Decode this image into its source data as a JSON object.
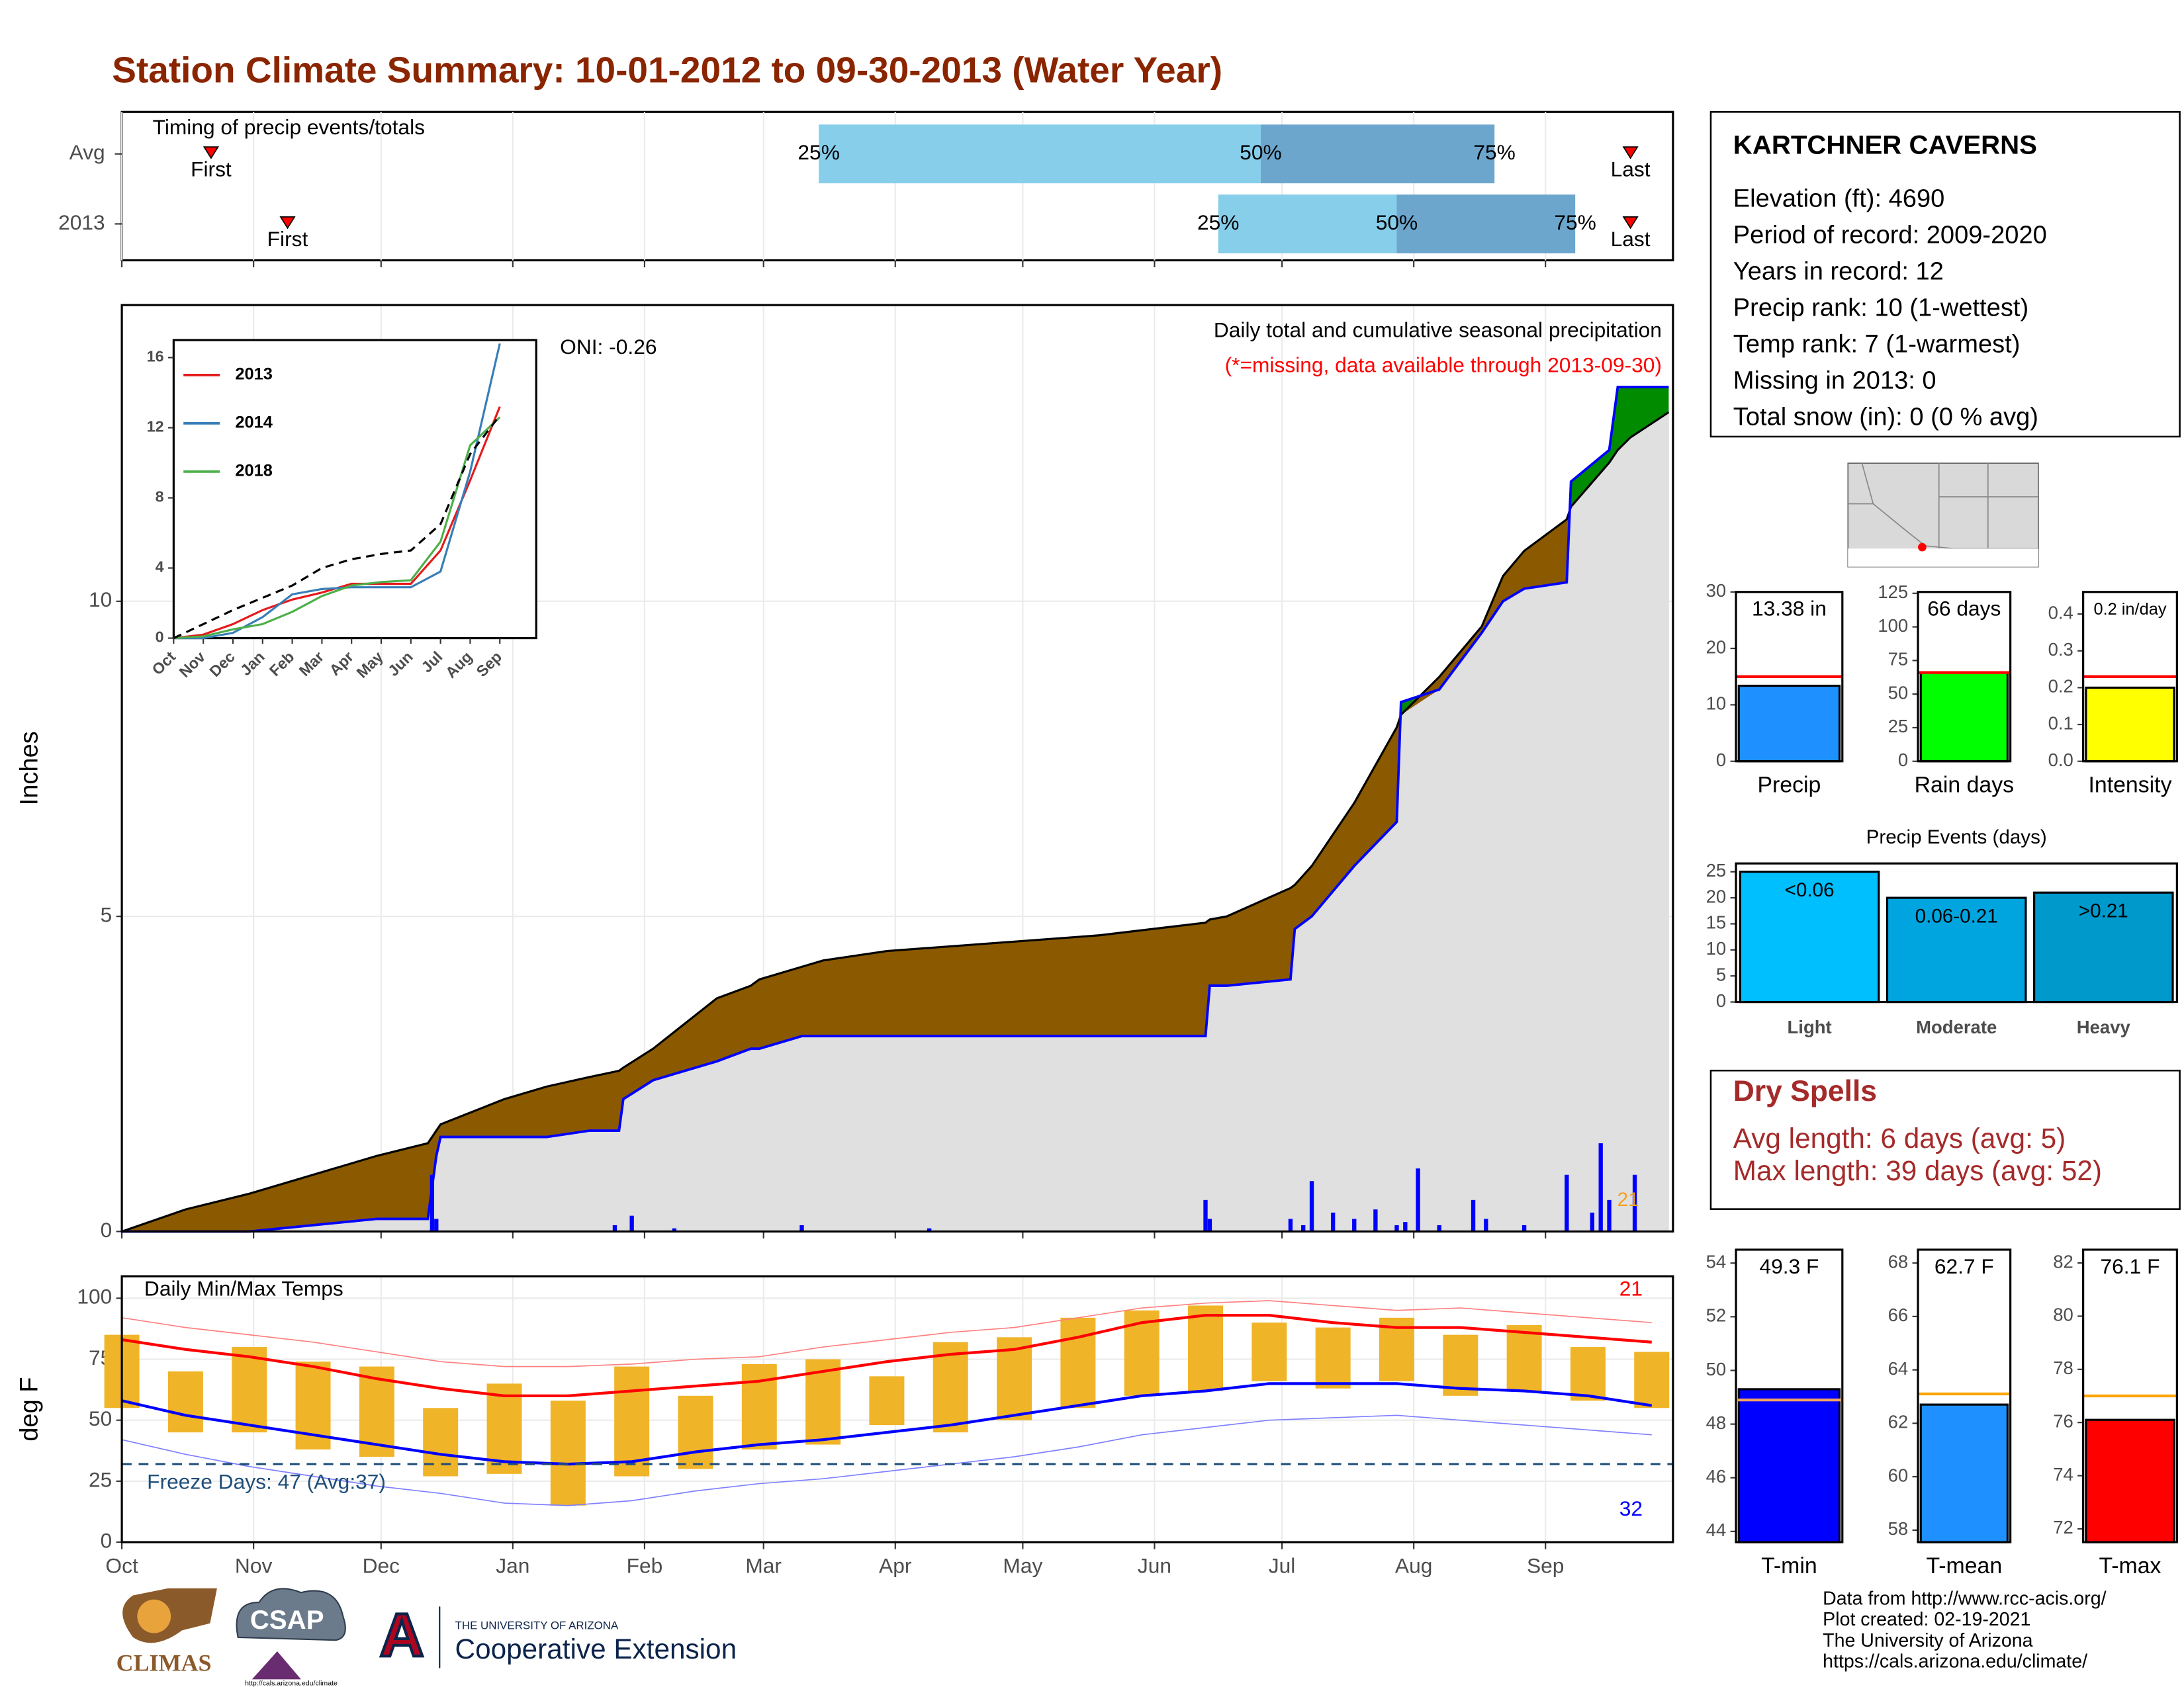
{
  "title": "Station Climate Summary: 10-01-2012 to 09-30-2013 (Water Year)",
  "chart_data": [
    {
      "type": "timing",
      "title": "Timing of precip events/totals",
      "categories": [
        "Avg",
        "2013"
      ],
      "xlim": [
        0,
        365
      ],
      "first": [
        21,
        39
      ],
      "first_label": "First",
      "last": [
        355,
        355
      ],
      "last_label": "Last",
      "quartiles": [
        [
          164,
          268,
          323
        ],
        [
          258,
          300,
          342
        ]
      ],
      "quartile_labels": [
        "25%",
        "50%",
        "75%"
      ],
      "colors": [
        "#87ceeb",
        "#6ca6cd"
      ]
    },
    {
      "type": "area",
      "xlim": [
        0,
        365
      ],
      "ylim": [
        0,
        14.7
      ],
      "yticks": [
        0,
        5,
        10
      ],
      "ylabel": "Inches",
      "x": [
        0,
        15,
        30,
        60,
        72,
        74,
        75,
        90,
        95,
        100,
        110,
        117,
        118,
        125,
        140,
        148,
        150,
        160,
        165,
        170,
        180,
        190,
        200,
        230,
        255,
        256,
        260,
        275,
        276,
        280,
        290,
        300,
        301,
        310,
        320,
        325,
        330,
        340,
        341,
        350,
        352,
        355,
        364
      ],
      "series": [
        {
          "color": "#0000ff",
          "values": [
            0,
            0,
            0,
            0.2,
            0.2,
            1.2,
            1.5,
            1.5,
            1.5,
            1.5,
            1.6,
            1.6,
            2.1,
            2.4,
            2.7,
            2.9,
            2.9,
            3.1,
            3.1,
            3.1,
            3.1,
            3.1,
            3.1,
            3.1,
            3.1,
            3.9,
            3.9,
            4.0,
            4.8,
            5.0,
            5.8,
            6.5,
            8.4,
            8.6,
            9.5,
            10.0,
            10.2,
            10.3,
            11.9,
            12.4,
            13.4,
            13.4,
            13.4
          ]
        },
        {
          "color": "#000000",
          "values": [
            0,
            0.35,
            0.6,
            1.2,
            1.4,
            1.6,
            1.7,
            2.1,
            2.2,
            2.3,
            2.45,
            2.55,
            2.6,
            2.9,
            3.7,
            3.9,
            4.0,
            4.2,
            4.3,
            4.35,
            4.45,
            4.5,
            4.55,
            4.7,
            4.9,
            4.95,
            5.0,
            5.45,
            5.5,
            5.8,
            6.8,
            8.0,
            8.2,
            8.8,
            9.6,
            10.4,
            10.8,
            11.3,
            11.5,
            12.2,
            12.4,
            12.6,
            13.0
          ]
        }
      ],
      "fill_colors": {
        "deficit": "#8b5a00",
        "surplus": "#008b00",
        "base": "#e0e0e0"
      },
      "bars": {
        "color": "#0000ff",
        "x": [
          73,
          74,
          116,
          120,
          130,
          160,
          190,
          255,
          256,
          275,
          278,
          280,
          285,
          290,
          295,
          300,
          302,
          305,
          310,
          318,
          321,
          330,
          340,
          346,
          348,
          350,
          356
        ],
        "values": [
          0.9,
          0.2,
          0.1,
          0.25,
          0.05,
          0.1,
          0.05,
          0.5,
          0.2,
          0.2,
          0.1,
          0.8,
          0.3,
          0.2,
          0.35,
          0.1,
          0.15,
          1.0,
          0.1,
          0.5,
          0.2,
          0.1,
          0.9,
          0.3,
          1.4,
          0.5,
          0.9
        ]
      },
      "oni": "ONI: -0.26",
      "subtitle": "Daily total and cumulative seasonal precipitation",
      "note": "(*=missing, data available through 2013-09-30)",
      "corner_label": "21"
    },
    {
      "type": "line",
      "categories": [
        "Oct",
        "Nov",
        "Dec",
        "Jan",
        "Feb",
        "Mar",
        "Apr",
        "May",
        "Jun",
        "Jul",
        "Aug",
        "Sep"
      ],
      "ylim": [
        0,
        17
      ],
      "yticks": [
        0,
        4,
        8,
        12,
        16
      ],
      "series": [
        {
          "name": "2013",
          "color": "#e41a1c",
          "values": [
            0,
            0.2,
            0.8,
            1.6,
            2.2,
            2.6,
            3.1,
            3.1,
            3.1,
            5.0,
            9.0,
            13.2
          ]
        },
        {
          "name": "2014",
          "color": "#377eb8",
          "values": [
            0,
            0,
            0.3,
            1.2,
            2.5,
            2.8,
            2.9,
            2.9,
            2.9,
            3.8,
            9.5,
            16.8
          ]
        },
        {
          "name": "2018",
          "color": "#4daf4a",
          "values": [
            0,
            0.1,
            0.5,
            0.8,
            1.5,
            2.4,
            3.0,
            3.2,
            3.3,
            5.5,
            11.0,
            12.6
          ]
        },
        {
          "color": "#000000",
          "dash": true,
          "values": [
            0,
            0.8,
            1.6,
            2.3,
            3.0,
            4.0,
            4.5,
            4.8,
            5.0,
            6.5,
            10.5,
            12.7
          ]
        }
      ]
    },
    {
      "type": "bar",
      "categories": [
        "Precip"
      ],
      "values": [
        13.38
      ],
      "value_labels": [
        "13.38 in"
      ],
      "reference": 15,
      "ref_color": "#ff0000",
      "color": "#1e90ff",
      "ylim": [
        0,
        30
      ],
      "yticks": [
        0,
        10,
        20,
        30
      ]
    },
    {
      "type": "bar",
      "categories": [
        "Rain days"
      ],
      "values": [
        66
      ],
      "value_labels": [
        "66 days"
      ],
      "reference": 66,
      "ref_color": "#ff0000",
      "color": "#00ff00",
      "ylim": [
        0,
        126
      ],
      "yticks": [
        0,
        25,
        50,
        75,
        100,
        125
      ]
    },
    {
      "type": "bar",
      "categories": [
        "Intensity"
      ],
      "values": [
        0.2
      ],
      "value_labels": [
        "0.2 in/day"
      ],
      "reference": 0.23,
      "ref_color": "#ff0000",
      "color": "#ffff00",
      "ylim": [
        0,
        0.46
      ],
      "yticks": [
        {
          "value": 0,
          "label": "0.0"
        },
        0.1,
        0.2,
        0.3,
        0.4
      ]
    },
    {
      "type": "bar",
      "title": "Precip Events (days)",
      "categories": [
        "Light",
        "Moderate",
        "Heavy"
      ],
      "values": [
        25,
        20,
        21
      ],
      "bar_labels": [
        "<0.06",
        "0.06-0.21",
        ">0.21"
      ],
      "colors": [
        "#00bfff",
        "#00a5e0",
        "#0099cc"
      ],
      "ylim": [
        0,
        26.6
      ],
      "yticks": [
        0,
        5,
        10,
        15,
        20,
        25
      ]
    },
    {
      "type": "bar",
      "categories": [
        "T-min"
      ],
      "values": [
        49.3
      ],
      "value_labels": [
        "49.3 F"
      ],
      "reference": 48.9,
      "ref_color": "#f4a460",
      "color": "#0000ff",
      "ylim": [
        43.6,
        54.5
      ],
      "yticks": [
        44,
        46,
        48,
        50,
        52,
        54
      ]
    },
    {
      "type": "bar",
      "categories": [
        "T-mean"
      ],
      "values": [
        62.7
      ],
      "value_labels": [
        "62.7 F"
      ],
      "reference": 63.1,
      "ref_color": "#ffa500",
      "color": "#1e90ff",
      "ylim": [
        57.55,
        68.5
      ],
      "yticks": [
        58,
        60,
        62,
        64,
        66,
        68
      ]
    },
    {
      "type": "bar",
      "categories": [
        "T-max"
      ],
      "values": [
        76.1
      ],
      "value_labels": [
        "76.1 F"
      ],
      "reference": 77,
      "ref_color": "#ffa500",
      "color": "#ff0000",
      "ylim": [
        71.5,
        82.5
      ],
      "yticks": [
        72,
        74,
        76,
        78,
        80,
        82
      ]
    },
    {
      "type": "temp",
      "title": "Daily Min/Max Temps",
      "ylabel": "deg F",
      "xlim": [
        0,
        365
      ],
      "ylim": [
        0,
        109
      ],
      "yticks": [
        0,
        25,
        50,
        75,
        100
      ],
      "xticks": [
        {
          "value": 0,
          "label": "Oct"
        },
        {
          "value": 31,
          "label": "Nov"
        },
        {
          "value": 61,
          "label": "Dec"
        },
        {
          "value": 92,
          "label": "Jan"
        },
        {
          "value": 123,
          "label": "Feb"
        },
        {
          "value": 151,
          "label": "Mar"
        },
        {
          "value": 182,
          "label": "Apr"
        },
        {
          "value": 212,
          "label": "May"
        },
        {
          "value": 243,
          "label": "Jun"
        },
        {
          "value": 273,
          "label": "Jul"
        },
        {
          "value": 304,
          "label": "Aug"
        },
        {
          "value": 335,
          "label": "Sep"
        }
      ],
      "x": [
        0,
        15,
        30,
        45,
        60,
        75,
        90,
        105,
        120,
        135,
        150,
        165,
        180,
        195,
        210,
        225,
        240,
        255,
        270,
        285,
        300,
        315,
        330,
        345,
        360
      ],
      "obs_high": [
        85,
        70,
        80,
        74,
        72,
        55,
        65,
        58,
        72,
        60,
        73,
        75,
        68,
        82,
        84,
        92,
        95,
        97,
        90,
        88,
        92,
        85,
        89,
        80,
        78
      ],
      "obs_low": [
        55,
        45,
        45,
        38,
        35,
        27,
        28,
        15,
        27,
        30,
        38,
        40,
        48,
        45,
        50,
        55,
        60,
        62,
        66,
        63,
        66,
        60,
        62,
        58,
        55
      ],
      "avg_high": [
        83,
        79,
        76,
        72,
        67,
        63,
        60,
        60,
        62,
        64,
        66,
        70,
        74,
        77,
        79,
        84,
        90,
        93,
        93,
        90,
        88,
        88,
        86,
        84,
        82
      ],
      "avg_low": [
        58,
        52,
        48,
        44,
        40,
        36,
        33,
        32,
        33,
        37,
        40,
        42,
        45,
        48,
        52,
        56,
        60,
        62,
        65,
        65,
        65,
        63,
        62,
        60,
        56
      ],
      "record_high": [
        92,
        88,
        85,
        82,
        78,
        74,
        72,
        72,
        73,
        75,
        76,
        80,
        83,
        86,
        88,
        92,
        96,
        98,
        99,
        97,
        95,
        96,
        94,
        92,
        90
      ],
      "record_low": [
        42,
        36,
        31,
        27,
        23,
        20,
        16,
        15,
        17,
        21,
        24,
        26,
        29,
        32,
        35,
        39,
        44,
        47,
        50,
        51,
        52,
        50,
        48,
        46,
        44
      ],
      "colors": {
        "obs": "#f0b428",
        "avg_high": "#ff0000",
        "avg_low": "#0000ff",
        "record_high": "#ff8080",
        "record_low": "#8080ff",
        "freeze": "#1f4e79"
      },
      "freeze_line": 32,
      "freeze_text": "Freeze Days: 47 (Avg:37)",
      "high_note": "21",
      "low_note": "32"
    }
  ],
  "station": {
    "name": "KARTCHNER CAVERNS",
    "lines": [
      "Elevation (ft): 4690",
      "Period of record: 2009-2020",
      "Years in record: 12",
      "Precip rank: 10 (1-wettest)",
      "Temp rank: 7 (1-warmest)",
      "Missing in 2013: 0",
      "Total snow (in): 0 (0 % avg)"
    ]
  },
  "dry_spells": {
    "title": "Dry Spells",
    "lines": [
      "Avg length: 6 days (avg: 5)",
      "Max length: 39 days (avg: 52)"
    ]
  },
  "footer": [
    "Data from http://www.rcc-acis.org/",
    "Plot created: 02-19-2021",
    "The University of Arizona",
    "https://cals.arizona.edu/climate/"
  ],
  "logos": {
    "climas": "CLIMAS",
    "csap": "CSAP",
    "csap_url": "http://cals.arizona.edu/climate",
    "ua_letter": "A",
    "ua_name": "THE UNIVERSITY OF ARIZONA",
    "extension": "Cooperative Extension"
  }
}
